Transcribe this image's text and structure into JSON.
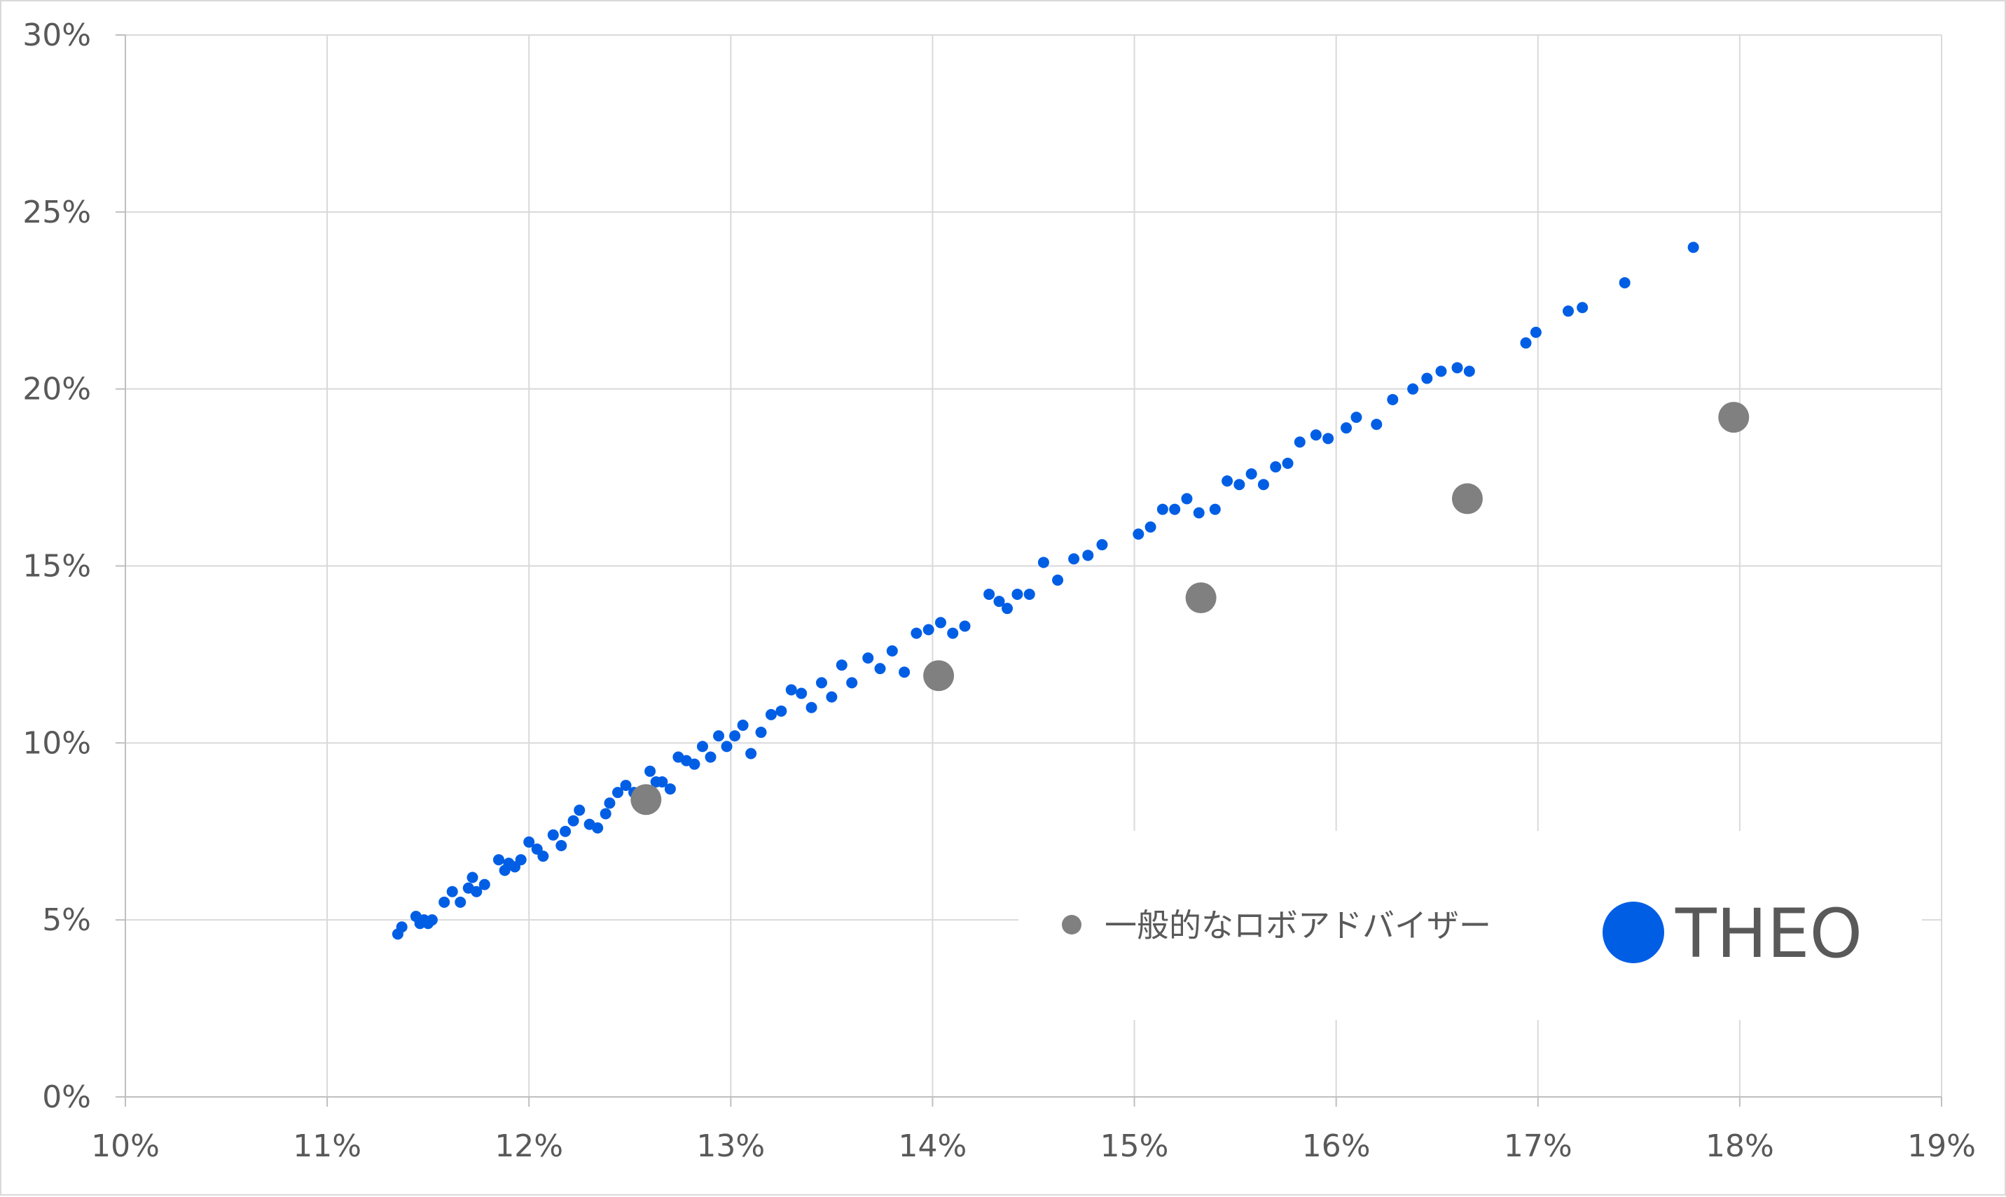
{
  "chart_data": {
    "type": "scatter",
    "title": "",
    "xlabel": "",
    "ylabel": "",
    "xlim": [
      10,
      19
    ],
    "ylim": [
      0,
      30
    ],
    "x_ticks": [
      "10%",
      "11%",
      "12%",
      "13%",
      "14%",
      "15%",
      "16%",
      "17%",
      "18%",
      "19%"
    ],
    "y_ticks": [
      "0%",
      "5%",
      "10%",
      "15%",
      "20%",
      "25%",
      "30%"
    ],
    "grid": true,
    "legend_position": "bottom-right",
    "series": [
      {
        "name": "一般的なロボアドバイザー",
        "color": "#808080",
        "x": [
          12.58,
          14.03,
          15.33,
          16.65,
          17.97
        ],
        "y": [
          8.4,
          11.9,
          14.1,
          16.9,
          19.2
        ]
      },
      {
        "name": "THEO",
        "color": "#005ee5",
        "x": [
          11.35,
          11.37,
          11.44,
          11.46,
          11.48,
          11.5,
          11.52,
          11.58,
          11.62,
          11.66,
          11.7,
          11.72,
          11.74,
          11.78,
          11.85,
          11.88,
          11.9,
          11.93,
          11.96,
          12.0,
          12.04,
          12.07,
          12.12,
          12.16,
          12.18,
          12.22,
          12.25,
          12.3,
          12.34,
          12.38,
          12.4,
          12.44,
          12.48,
          12.52,
          12.55,
          12.6,
          12.63,
          12.66,
          12.7,
          12.74,
          12.78,
          12.82,
          12.86,
          12.9,
          12.94,
          12.98,
          13.02,
          13.06,
          13.1,
          13.15,
          13.2,
          13.25,
          13.3,
          13.35,
          13.4,
          13.45,
          13.5,
          13.55,
          13.6,
          13.68,
          13.74,
          13.8,
          13.86,
          13.92,
          13.98,
          14.04,
          14.1,
          14.16,
          14.28,
          14.33,
          14.37,
          14.42,
          14.48,
          14.55,
          14.62,
          14.7,
          14.77,
          14.84,
          15.02,
          15.08,
          15.14,
          15.2,
          15.26,
          15.32,
          15.4,
          15.46,
          15.52,
          15.58,
          15.64,
          15.7,
          15.76,
          15.82,
          15.9,
          15.96,
          16.05,
          16.1,
          16.2,
          16.28,
          16.38,
          16.45,
          16.52,
          16.6,
          16.66,
          16.94,
          16.99,
          17.15,
          17.22,
          17.43,
          17.77
        ],
        "y": [
          4.6,
          4.8,
          5.1,
          4.9,
          5.0,
          4.9,
          5.0,
          5.5,
          5.8,
          5.5,
          5.9,
          6.2,
          5.8,
          6.0,
          6.7,
          6.4,
          6.6,
          6.5,
          6.7,
          7.2,
          7.0,
          6.8,
          7.4,
          7.1,
          7.5,
          7.8,
          8.1,
          7.7,
          7.6,
          8.0,
          8.3,
          8.6,
          8.8,
          8.6,
          8.5,
          9.2,
          8.9,
          8.9,
          8.7,
          9.6,
          9.5,
          9.4,
          9.9,
          9.6,
          10.2,
          9.9,
          10.2,
          10.5,
          9.7,
          10.3,
          10.8,
          10.9,
          11.5,
          11.4,
          11.0,
          11.7,
          11.3,
          12.2,
          11.7,
          12.4,
          12.1,
          12.6,
          12.0,
          13.1,
          13.2,
          13.4,
          13.1,
          13.3,
          14.2,
          14.0,
          13.8,
          14.2,
          14.2,
          15.1,
          14.6,
          15.2,
          15.3,
          15.6,
          15.9,
          16.1,
          16.6,
          16.6,
          16.9,
          16.5,
          16.6,
          17.4,
          17.3,
          17.6,
          17.3,
          17.8,
          17.9,
          18.5,
          18.7,
          18.6,
          18.9,
          19.2,
          19.0,
          19.7,
          20.0,
          20.3,
          20.5,
          20.6,
          20.5,
          21.3,
          21.6,
          22.2,
          22.3,
          23.0,
          24.0
        ]
      }
    ]
  }
}
